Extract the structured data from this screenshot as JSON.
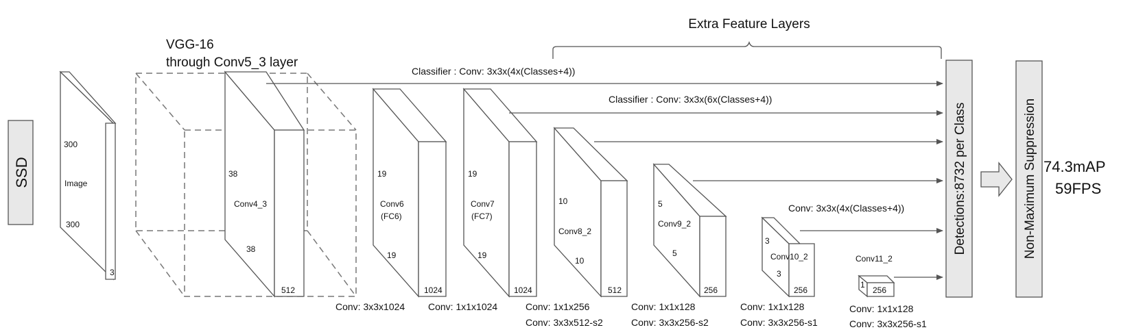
{
  "ssd": "SSD",
  "vgg_title": [
    "VGG-16",
    "through Conv5_3 layer"
  ],
  "extra_feature_layers": "Extra Feature Layers",
  "classifier_1": "Classifier : Conv: 3x3x(4x(Classes+4))",
  "classifier_2": "Classifier : Conv: 3x3x(6x(Classes+4))",
  "conv_3x3_4": "Conv: 3x3x(4x(Classes+4))",
  "detections": "Detections:8732  per Class",
  "nms": "Non-Maximum Suppression",
  "metric_map": "74.3mAP",
  "metric_fps": "59FPS",
  "blocks": {
    "image": {
      "name": "Image",
      "h": "300",
      "w": "300",
      "d": "3"
    },
    "conv4_3": {
      "name": "Conv4_3",
      "h": "38",
      "w": "38",
      "d": "512"
    },
    "conv6": {
      "name": [
        "Conv6",
        "(FC6)"
      ],
      "h": "19",
      "w": "19",
      "d": "1024"
    },
    "conv7": {
      "name": [
        "Conv7",
        "(FC7)"
      ],
      "h": "19",
      "w": "19",
      "d": "1024"
    },
    "conv8_2": {
      "name": "Conv8_2",
      "h": "10",
      "w": "10",
      "d": "512"
    },
    "conv9_2": {
      "name": "Conv9_2",
      "h": "5",
      "w": "5",
      "d": "256"
    },
    "conv10_2": {
      "name": "Conv10_2",
      "h": "3",
      "w": "3",
      "d": "256"
    },
    "conv11_2": {
      "name": "Conv11_2",
      "h": "1",
      "d": "256"
    }
  },
  "captions": {
    "conv6": [
      "Conv: 3x3x1024"
    ],
    "conv7": [
      "Conv: 1x1x1024"
    ],
    "conv8_2": [
      "Conv: 1x1x256",
      "Conv:  3x3x512-s2"
    ],
    "conv9_2": [
      "Conv: 1x1x128",
      "Conv: 3x3x256-s2"
    ],
    "conv10_2": [
      "Conv: 1x1x128",
      "Conv: 3x3x256-s1"
    ],
    "conv11_2": [
      "Conv: 1x1x128",
      "Conv: 3x3x256-s1"
    ]
  }
}
